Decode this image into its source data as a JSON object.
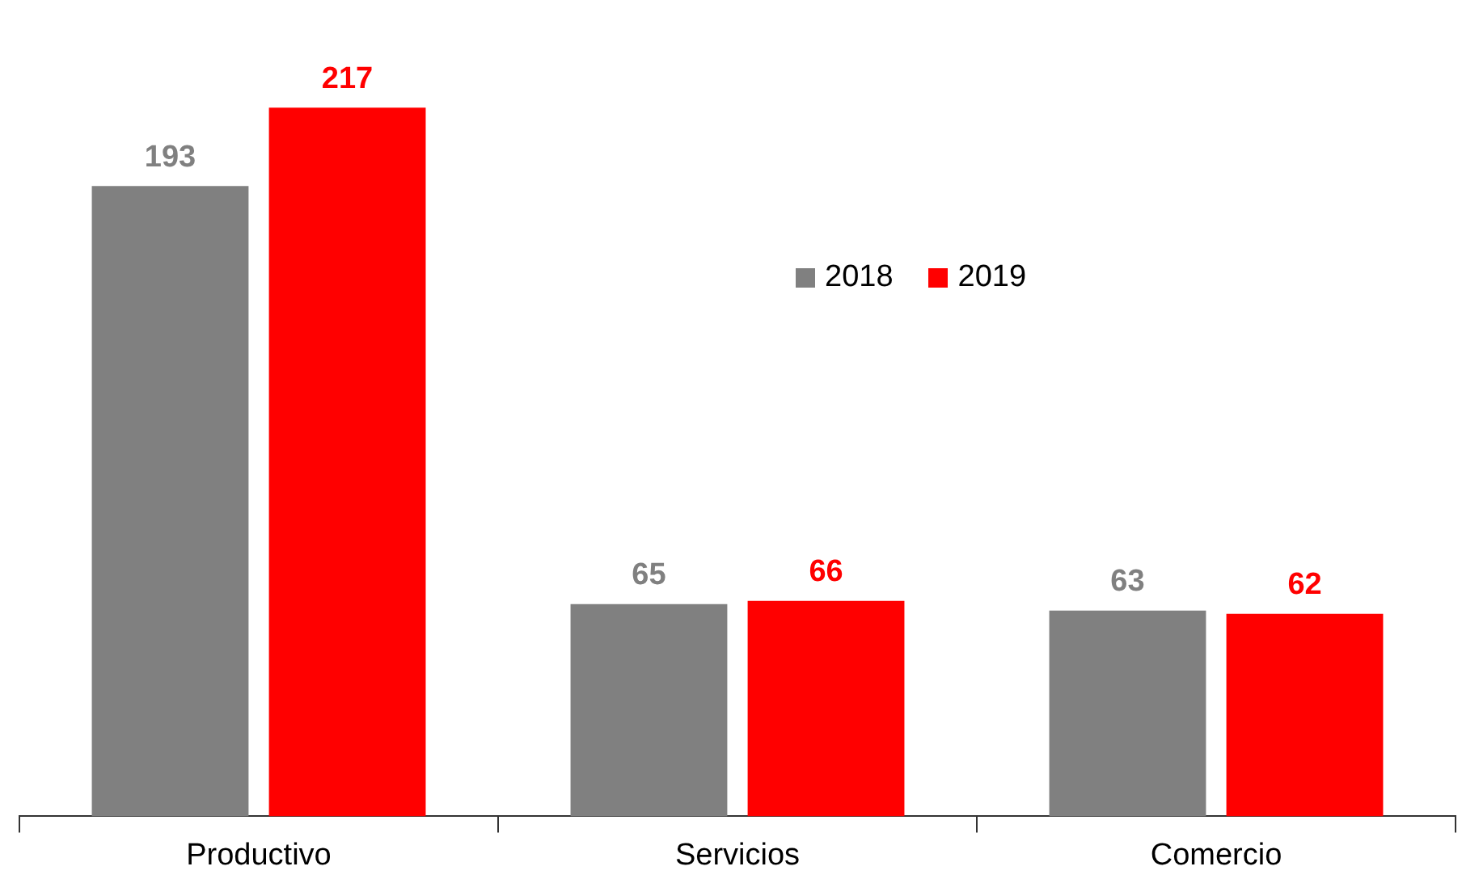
{
  "chart_data": {
    "type": "bar",
    "categories": [
      "Productivo",
      "Servicios",
      "Comercio"
    ],
    "series": [
      {
        "name": "2018",
        "color": "#808080",
        "values": [
          193,
          65,
          63
        ]
      },
      {
        "name": "2019",
        "color": "#ff0000",
        "values": [
          217,
          66,
          62
        ]
      }
    ],
    "data_labels": true,
    "legend": "top",
    "grid": false
  }
}
